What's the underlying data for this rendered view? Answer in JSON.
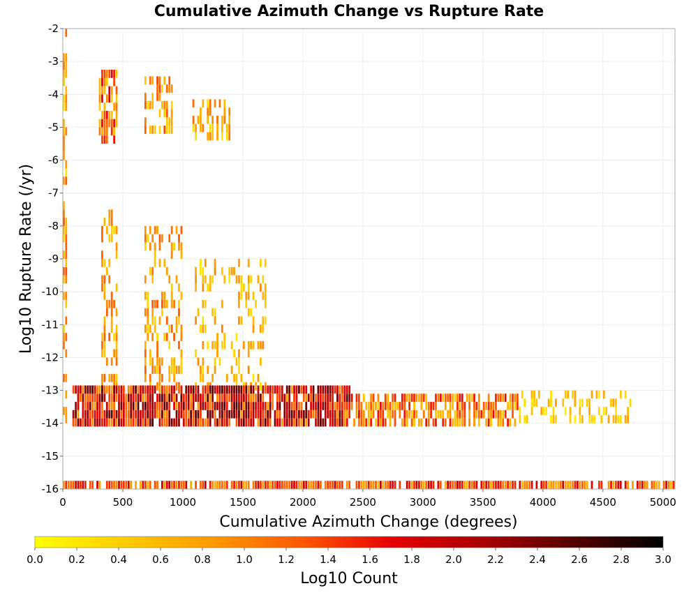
{
  "chart_data": {
    "type": "heatmap",
    "title": "Cumulative Azimuth Change vs Rupture Rate",
    "xlabel": "Cumulative Azimuth Change (degrees)",
    "ylabel": "Log10 Rupture Rate (/yr)",
    "xlim": [
      0,
      5100
    ],
    "ylim": [
      -16,
      -2
    ],
    "x_ticks": [
      "0",
      "500",
      "1000",
      "1500",
      "2000",
      "2500",
      "3000",
      "3500",
      "4000",
      "4500",
      "5000"
    ],
    "y_ticks": [
      "-2",
      "-3",
      "-4",
      "-5",
      "-6",
      "-7",
      "-8",
      "-9",
      "-10",
      "-11",
      "-12",
      "-13",
      "-14",
      "-15",
      "-16"
    ],
    "grid": true,
    "colorbar": {
      "label": "Log10 Count",
      "range": [
        0.0,
        3.0
      ],
      "ticks": [
        "0.0",
        "0.2",
        "0.4",
        "0.6",
        "0.8",
        "1.0",
        "1.2",
        "1.4",
        "1.6",
        "1.8",
        "2.0",
        "2.2",
        "2.4",
        "2.6",
        "2.8",
        "3.0"
      ],
      "colors": [
        "#ffff00",
        "#ffcc00",
        "#ff9900",
        "#ff5500",
        "#e60000",
        "#aa0000",
        "#550000",
        "#000000"
      ],
      "placement": "bottom"
    },
    "cell_size": {
      "x_degrees": 20,
      "y_log10": 0.25
    },
    "regions": [
      {
        "x": [
          0,
          40
        ],
        "y": [
          -14,
          -2
        ],
        "intensity": [
          0.2,
          1.4
        ],
        "density": 0.6
      },
      {
        "x": [
          300,
          460
        ],
        "y": [
          -5.5,
          -3.4
        ],
        "intensity": [
          0.4,
          1.8
        ],
        "density": 0.75
      },
      {
        "x": [
          680,
          920
        ],
        "y": [
          -5.2,
          -3.6
        ],
        "intensity": [
          0.3,
          1.5
        ],
        "density": 0.55
      },
      {
        "x": [
          1080,
          1400
        ],
        "y": [
          -5.4,
          -4.2
        ],
        "intensity": [
          0.2,
          1.2
        ],
        "density": 0.45
      },
      {
        "x": [
          320,
          460
        ],
        "y": [
          -13,
          -7.5
        ],
        "intensity": [
          0.3,
          1.3
        ],
        "density": 0.45
      },
      {
        "x": [
          680,
          1000
        ],
        "y": [
          -13,
          -8
        ],
        "intensity": [
          0.3,
          1.3
        ],
        "density": 0.35
      },
      {
        "x": [
          1100,
          1700
        ],
        "y": [
          -13,
          -9
        ],
        "intensity": [
          0.2,
          1.0
        ],
        "density": 0.25
      },
      {
        "x": [
          80,
          2400
        ],
        "y": [
          -14.1,
          -13.0
        ],
        "intensity": [
          0.8,
          2.6
        ],
        "density": 0.9
      },
      {
        "x": [
          2400,
          3800
        ],
        "y": [
          -14.1,
          -13.1
        ],
        "intensity": [
          0.4,
          1.7
        ],
        "density": 0.7
      },
      {
        "x": [
          3800,
          4800
        ],
        "y": [
          -14.0,
          -13.2
        ],
        "intensity": [
          0.1,
          0.8
        ],
        "density": 0.35
      },
      {
        "x": [
          0,
          5100
        ],
        "y": [
          -16.0,
          -15.8
        ],
        "intensity": [
          0.6,
          2.0
        ],
        "density": 0.85
      }
    ]
  }
}
